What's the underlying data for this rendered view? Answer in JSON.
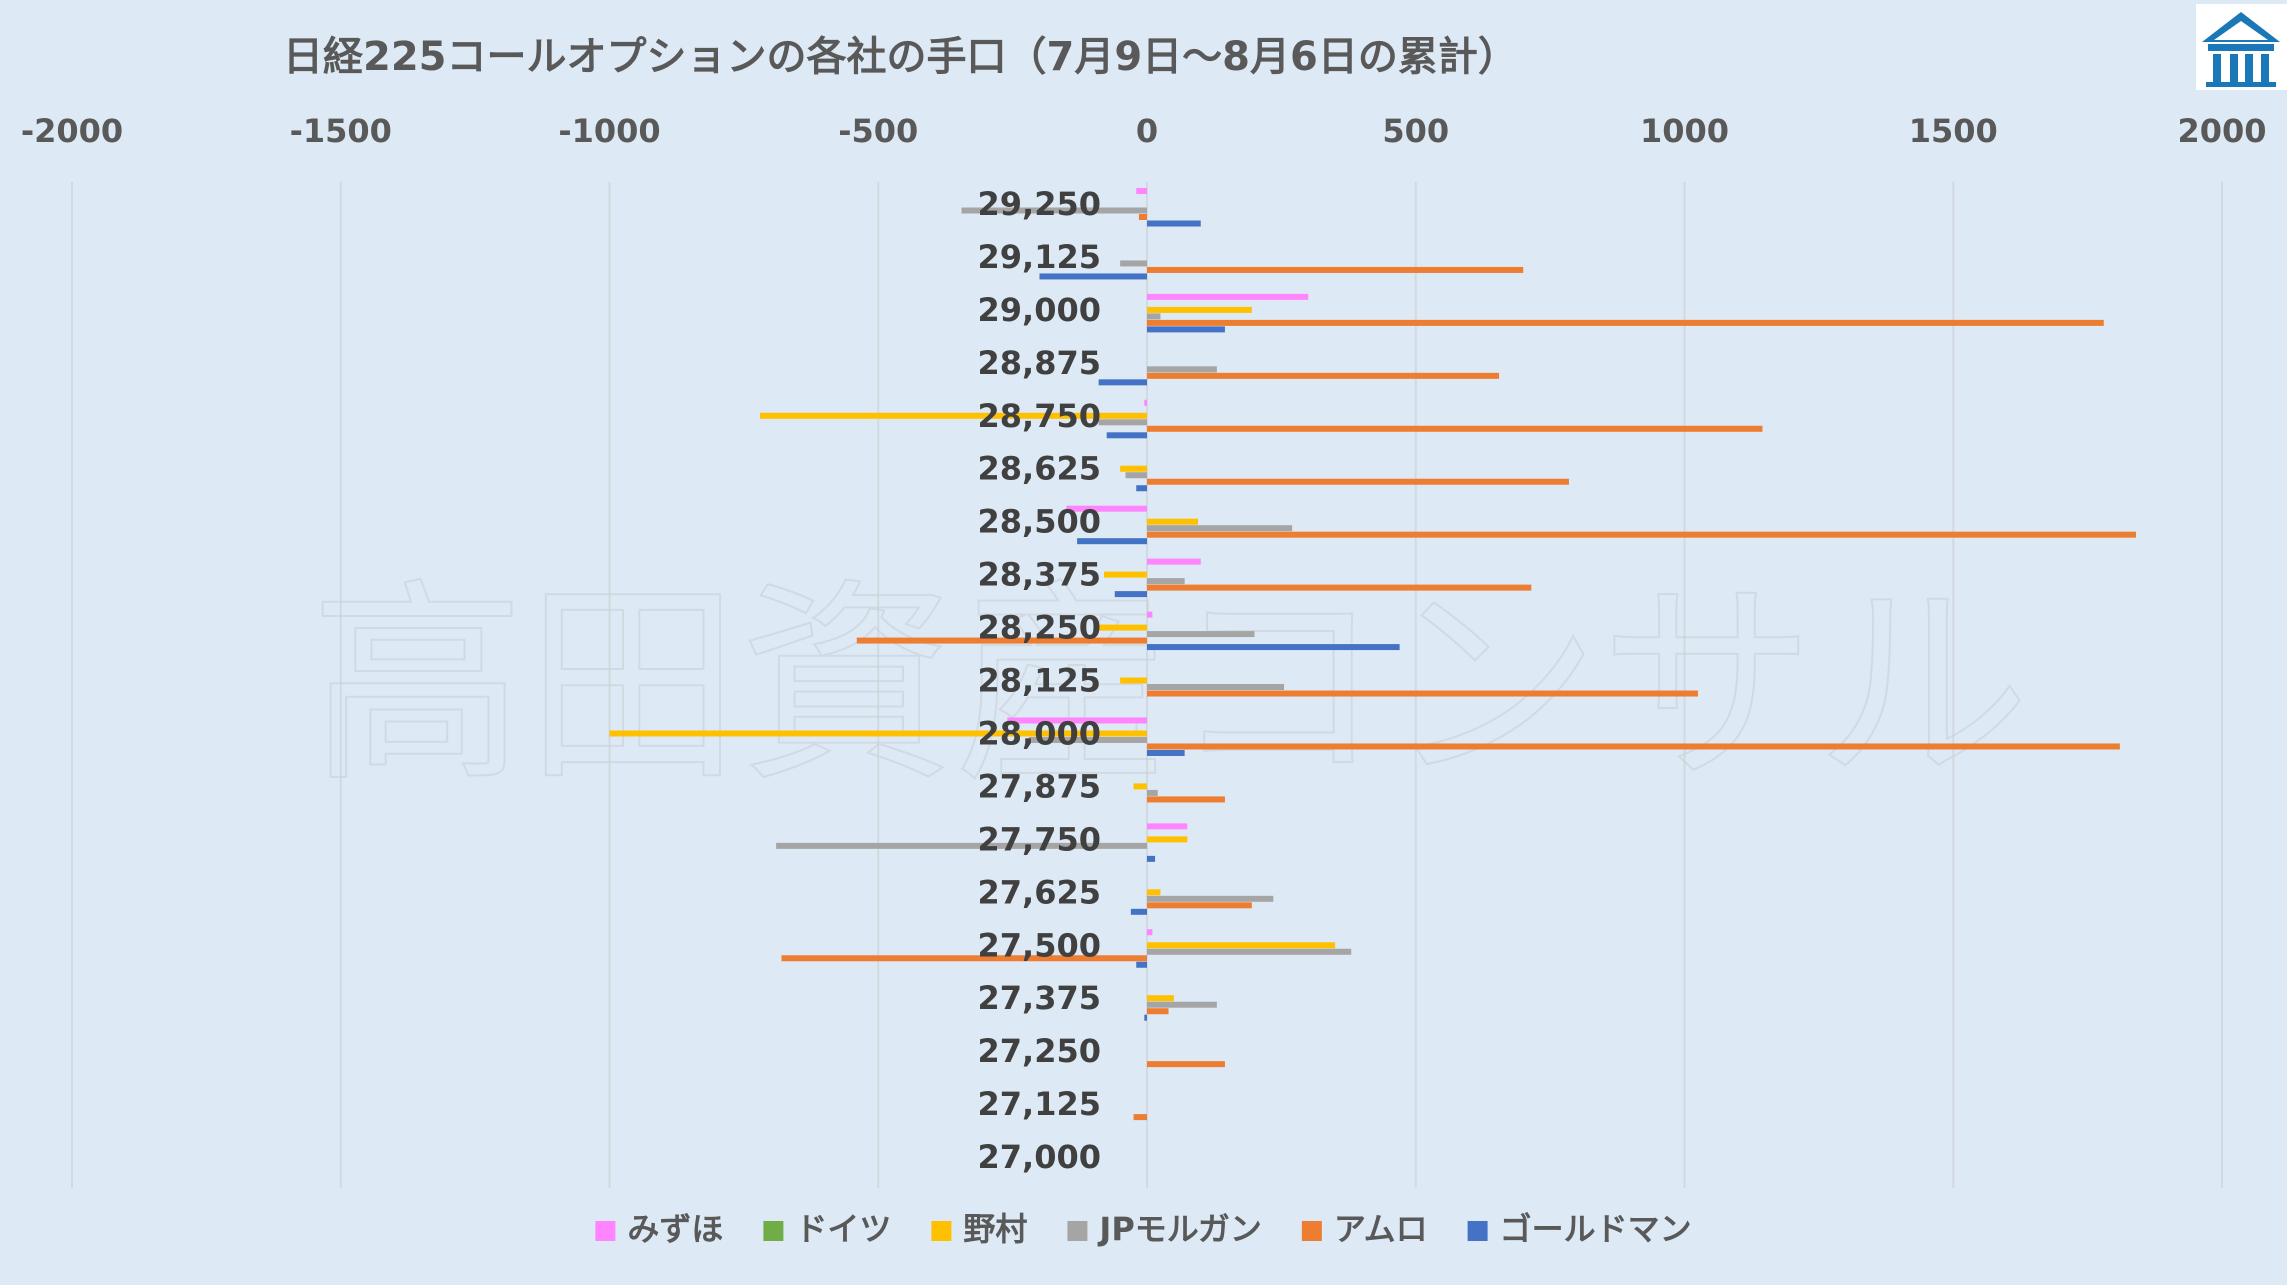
{
  "logo": {
    "icon": "building-icon",
    "color": "#1a78b8"
  },
  "watermark": "高田資産コンサル",
  "chart_data": {
    "type": "bar",
    "orientation": "horizontal",
    "title": "日経225コールオプションの各社の手口（7月9日～8月6日の累計）",
    "xlim": [
      -2000,
      2000
    ],
    "x_ticks": [
      -2000,
      -1500,
      -1000,
      -500,
      0,
      500,
      1000,
      1500,
      2000
    ],
    "x_axis_position": "top",
    "grid": true,
    "legend_position": "bottom",
    "categories": [
      "29,250",
      "29,125",
      "29,000",
      "28,875",
      "28,750",
      "28,625",
      "28,500",
      "28,375",
      "28,250",
      "28,125",
      "28,000",
      "27,875",
      "27,750",
      "27,625",
      "27,500",
      "27,375",
      "27,250",
      "27,125",
      "27,000"
    ],
    "series": [
      {
        "name": "みずほ",
        "color": "#ff85ff",
        "values": [
          -20,
          0,
          300,
          0,
          -5,
          0,
          -150,
          100,
          10,
          0,
          -260,
          0,
          75,
          0,
          10,
          0,
          0,
          0,
          0
        ]
      },
      {
        "name": "ドイツ",
        "color": "#70ad47",
        "values": [
          0,
          0,
          0,
          0,
          0,
          0,
          0,
          0,
          0,
          0,
          0,
          0,
          0,
          0,
          0,
          0,
          0,
          0,
          0
        ]
      },
      {
        "name": "野村",
        "color": "#ffc000",
        "values": [
          0,
          0,
          195,
          0,
          -720,
          -50,
          95,
          -80,
          -90,
          -50,
          -1000,
          -25,
          75,
          25,
          350,
          50,
          0,
          0,
          0
        ]
      },
      {
        "name": "JPモルガン",
        "color": "#a5a5a5",
        "values": [
          -345,
          -50,
          25,
          130,
          -90,
          -40,
          270,
          70,
          200,
          255,
          -220,
          20,
          -690,
          235,
          380,
          130,
          0,
          0,
          0
        ]
      },
      {
        "name": "アムロ",
        "color": "#ed7d31",
        "values": [
          -15,
          700,
          1780,
          655,
          1145,
          785,
          1840,
          715,
          -540,
          1025,
          1810,
          145,
          0,
          195,
          -680,
          40,
          145,
          -25,
          0
        ]
      },
      {
        "name": "ゴールドマン",
        "color": "#4472c4",
        "values": [
          100,
          -200,
          145,
          -90,
          -75,
          -20,
          -130,
          -60,
          470,
          0,
          70,
          0,
          15,
          -30,
          -20,
          -5,
          0,
          0,
          0
        ]
      }
    ]
  }
}
